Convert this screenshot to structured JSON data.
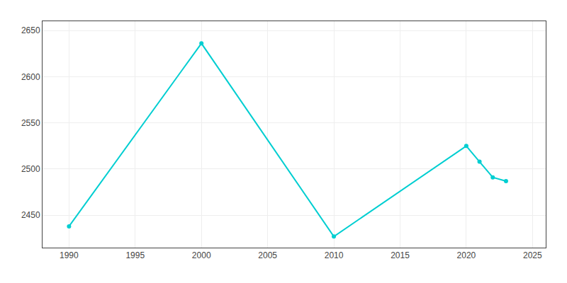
{
  "chart_data": {
    "type": "line",
    "x": [
      1990,
      2000,
      2010,
      2020,
      2021,
      2022,
      2023
    ],
    "values": [
      2438,
      2636,
      2427,
      2525,
      2508,
      2491,
      2487
    ],
    "color": "#00CED1",
    "marker": "circle",
    "xlim": [
      1988,
      2026
    ],
    "ylim": [
      2415,
      2660
    ],
    "xticks": [
      1990,
      1995,
      2000,
      2005,
      2010,
      2015,
      2020,
      2025
    ],
    "yticks": [
      2450,
      2500,
      2550,
      2600,
      2650
    ],
    "grid": true
  }
}
